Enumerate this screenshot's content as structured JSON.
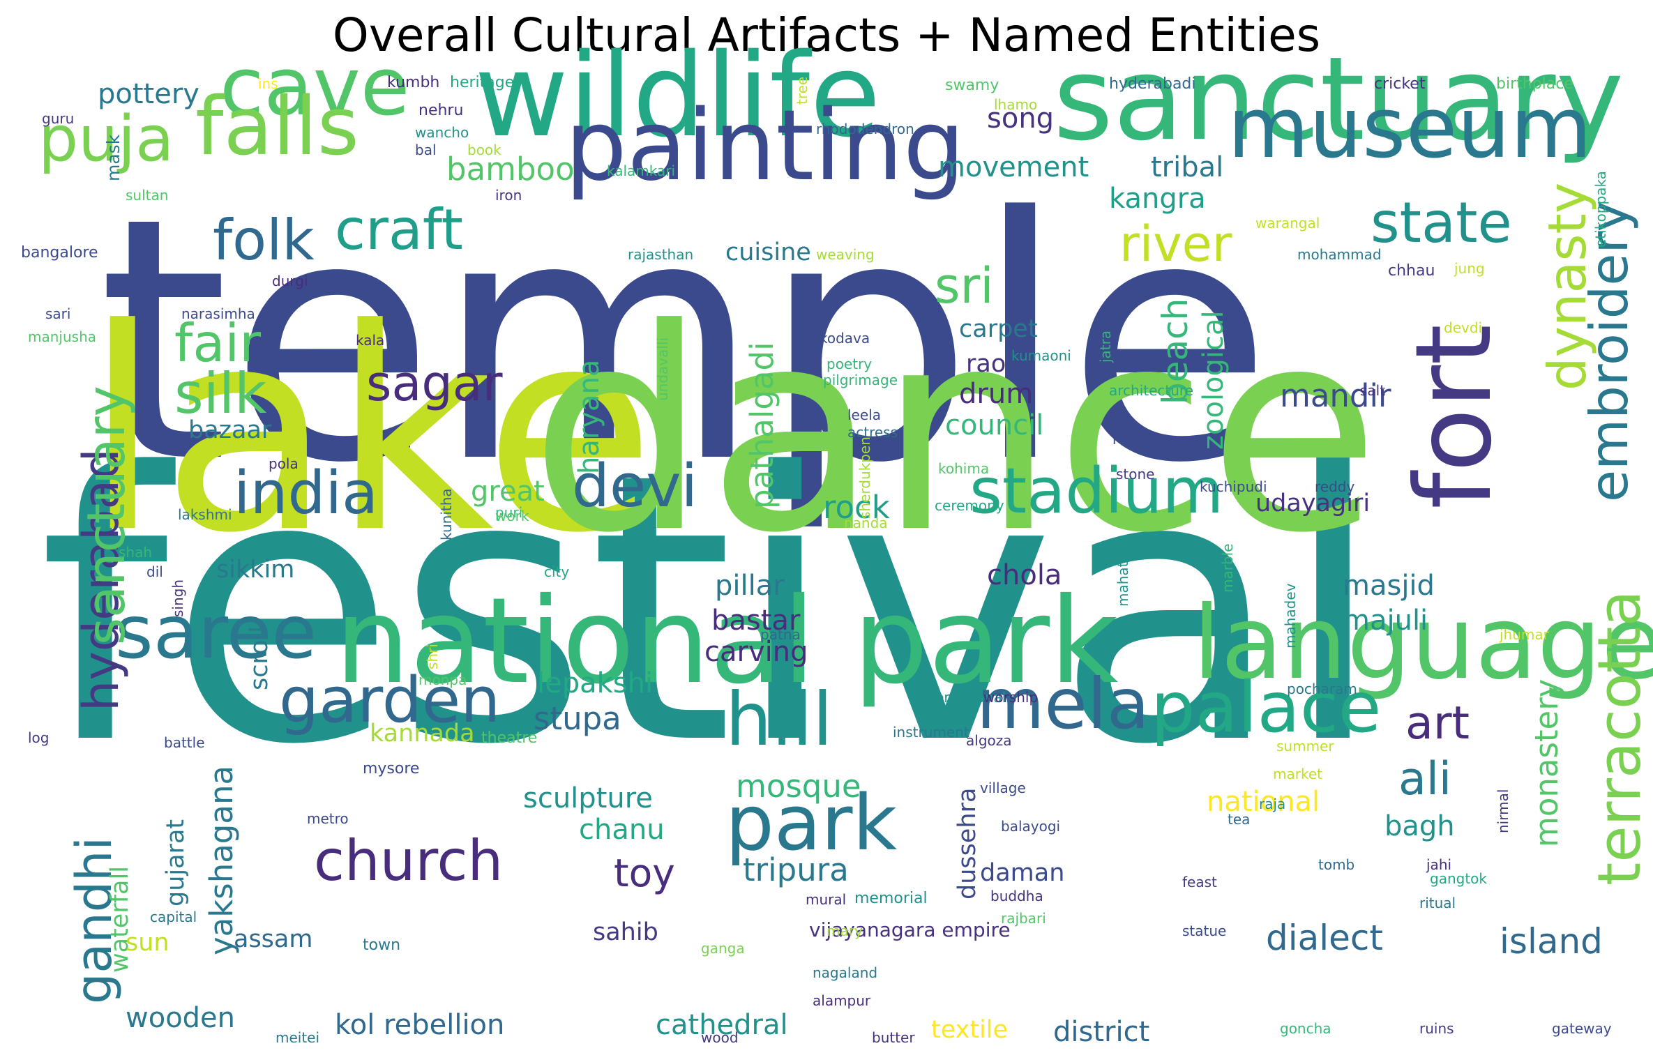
{
  "title": "Overall Cultural Artifacts + Named Entities",
  "palette": [
    "#3b4a8c",
    "#443983",
    "#472d7b",
    "#46327e",
    "#31688e",
    "#2a788e",
    "#21918c",
    "#1f9e89",
    "#22a884",
    "#35b779",
    "#52c569",
    "#7ad151",
    "#a5db36",
    "#c2df23",
    "#fde725"
  ],
  "words": [
    {
      "text": "temple",
      "color": "#3b4a8c"
    },
    {
      "text": "festival",
      "color": "#21918c"
    },
    {
      "text": "lake",
      "color": "#c2df23"
    },
    {
      "text": "dance",
      "color": "#7ad151"
    },
    {
      "text": "wildlife",
      "color": "#22a884"
    },
    {
      "text": "sanctuary",
      "color": "#35b779"
    },
    {
      "text": "painting",
      "color": "#3b4a8c"
    },
    {
      "text": "national park",
      "color": "#35b779"
    },
    {
      "text": "fort",
      "color": "#443983"
    },
    {
      "text": "museum",
      "color": "#2a788e"
    },
    {
      "text": "cave",
      "color": "#52c569"
    },
    {
      "text": "falls",
      "color": "#7ad151"
    },
    {
      "text": "language",
      "color": "#52c569"
    },
    {
      "text": "saree",
      "color": "#2a788e"
    },
    {
      "text": "mela",
      "color": "#31688e"
    },
    {
      "text": "palace",
      "color": "#22a884"
    },
    {
      "text": "park",
      "color": "#2a788e"
    },
    {
      "text": "hill",
      "color": "#21918c"
    },
    {
      "text": "garden",
      "color": "#31688e"
    },
    {
      "text": "stadium",
      "color": "#22a884"
    },
    {
      "text": "india",
      "color": "#31688e"
    },
    {
      "text": "devi",
      "color": "#31688e"
    },
    {
      "text": "church",
      "color": "#472d7b"
    },
    {
      "text": "craft",
      "color": "#1f9e89"
    },
    {
      "text": "folk",
      "color": "#31688e"
    },
    {
      "text": "state",
      "color": "#21918c"
    },
    {
      "text": "puja",
      "color": "#7ad151"
    },
    {
      "text": "embroidery",
      "color": "#2a788e"
    },
    {
      "text": "terracotta",
      "color": "#7ad151"
    },
    {
      "text": "dynasty",
      "color": "#a5db36"
    },
    {
      "text": "hyderabad",
      "color": "#443983"
    },
    {
      "text": "sanctuary",
      "color": "#52c569"
    },
    {
      "text": "gandhi",
      "color": "#2a788e"
    },
    {
      "text": "fair",
      "color": "#52c569"
    },
    {
      "text": "silk",
      "color": "#52c569"
    },
    {
      "text": "sri",
      "color": "#52c569"
    },
    {
      "text": "river",
      "color": "#c2df23"
    },
    {
      "text": "sagar",
      "color": "#472d7b"
    },
    {
      "text": "art",
      "color": "#472d7b"
    },
    {
      "text": "ali",
      "color": "#2a788e"
    },
    {
      "text": "island",
      "color": "#31688e"
    },
    {
      "text": "dialect",
      "color": "#31688e"
    },
    {
      "text": "toy",
      "color": "#472d7b"
    },
    {
      "text": "tripura",
      "color": "#2a788e"
    },
    {
      "text": "mosque",
      "color": "#35b779"
    },
    {
      "text": "stupa",
      "color": "#31688e"
    },
    {
      "text": "mandir",
      "color": "#3b4a8c"
    },
    {
      "text": "beach",
      "color": "#35b779"
    },
    {
      "text": "zoological",
      "color": "#35b779"
    },
    {
      "text": "pathalgadi",
      "color": "#52c569"
    },
    {
      "text": "haryana",
      "color": "#35b779"
    },
    {
      "text": "yakshagana",
      "color": "#2a788e"
    },
    {
      "text": "waterfall",
      "color": "#52c569"
    },
    {
      "text": "gujarat",
      "color": "#2a788e"
    },
    {
      "text": "monastery",
      "color": "#52c569"
    },
    {
      "text": "dussehra",
      "color": "#3b4a8c"
    },
    {
      "text": "scroll",
      "color": "#2a788e"
    },
    {
      "text": "pottery",
      "color": "#2a788e"
    },
    {
      "text": "bamboo",
      "color": "#52c569"
    },
    {
      "text": "cuisine",
      "color": "#2a788e"
    },
    {
      "text": "tribal",
      "color": "#2a788e"
    },
    {
      "text": "kangra",
      "color": "#1f9e89"
    },
    {
      "text": "movement",
      "color": "#21918c"
    },
    {
      "text": "song",
      "color": "#46327e"
    },
    {
      "text": "carpet",
      "color": "#2a788e"
    },
    {
      "text": "rao",
      "color": "#46327e"
    },
    {
      "text": "drum",
      "color": "#472d7b"
    },
    {
      "text": "council",
      "color": "#35b779"
    },
    {
      "text": "bazaar",
      "color": "#2a788e"
    },
    {
      "text": "great",
      "color": "#52c569"
    },
    {
      "text": "rock",
      "color": "#1f9e89"
    },
    {
      "text": "udayagiri",
      "color": "#46327e"
    },
    {
      "text": "sikkim",
      "color": "#2a788e"
    },
    {
      "text": "chola",
      "color": "#472d7b"
    },
    {
      "text": "pillar",
      "color": "#2a788e"
    },
    {
      "text": "bastar",
      "color": "#472d7b"
    },
    {
      "text": "carving",
      "color": "#472d7b"
    },
    {
      "text": "masjid",
      "color": "#2a788e"
    },
    {
      "text": "majuli",
      "color": "#21918c"
    },
    {
      "text": "lepakshi",
      "color": "#22a884"
    },
    {
      "text": "kannada",
      "color": "#a5db36"
    },
    {
      "text": "sculpture",
      "color": "#21918c"
    },
    {
      "text": "chanu",
      "color": "#22a884"
    },
    {
      "text": "national",
      "color": "#fde725"
    },
    {
      "text": "bagh",
      "color": "#21918c"
    },
    {
      "text": "daman",
      "color": "#3b4a8c"
    },
    {
      "text": "sahib",
      "color": "#443983"
    },
    {
      "text": "assam",
      "color": "#31688e"
    },
    {
      "text": "sun",
      "color": "#c2df23"
    },
    {
      "text": "wooden",
      "color": "#2a788e"
    },
    {
      "text": "kol rebellion",
      "color": "#31688e"
    },
    {
      "text": "cathedral",
      "color": "#21918c"
    },
    {
      "text": "textile",
      "color": "#fde725"
    },
    {
      "text": "district",
      "color": "#31688e"
    },
    {
      "text": "vijayanagara empire",
      "color": "#46327e"
    },
    {
      "text": "mask",
      "color": "#2a788e"
    },
    {
      "text": "ins",
      "color": "#fde725"
    },
    {
      "text": "guru",
      "color": "#443983"
    },
    {
      "text": "kumbh",
      "color": "#472d7b"
    },
    {
      "text": "heritage",
      "color": "#22a884"
    },
    {
      "text": "nehru",
      "color": "#46327e"
    },
    {
      "text": "wancho",
      "color": "#21918c"
    },
    {
      "text": "bal",
      "color": "#3b4a8c"
    },
    {
      "text": "book",
      "color": "#a5db36"
    },
    {
      "text": "sultan",
      "color": "#52c569"
    },
    {
      "text": "iron",
      "color": "#46327e"
    },
    {
      "text": "kalamkari",
      "color": "#35b779"
    },
    {
      "text": "bangalore",
      "color": "#3b4a8c"
    },
    {
      "text": "durgi",
      "color": "#472d7b"
    },
    {
      "text": "sari",
      "color": "#3b4a8c"
    },
    {
      "text": "narasimha",
      "color": "#3b4a8c"
    },
    {
      "text": "manjusha",
      "color": "#52c569"
    },
    {
      "text": "kala",
      "color": "#472d7b"
    },
    {
      "text": "pola",
      "color": "#46327e"
    },
    {
      "text": "lakshmi",
      "color": "#2a788e"
    },
    {
      "text": "puri",
      "color": "#35b779"
    },
    {
      "text": "shah",
      "color": "#35b779"
    },
    {
      "text": "dil",
      "color": "#3b4a8c"
    },
    {
      "text": "singh",
      "color": "#46327e"
    },
    {
      "text": "kunitha",
      "color": "#31688e"
    },
    {
      "text": "work",
      "color": "#52c569"
    },
    {
      "text": "city",
      "color": "#22a884"
    },
    {
      "text": "capital",
      "color": "#2a788e"
    },
    {
      "text": "town",
      "color": "#2a788e"
    },
    {
      "text": "log",
      "color": "#443983"
    },
    {
      "text": "battle",
      "color": "#3b4a8c"
    },
    {
      "text": "mysore",
      "color": "#3b4a8c"
    },
    {
      "text": "theatre",
      "color": "#52c569"
    },
    {
      "text": "monpa",
      "color": "#52c569"
    },
    {
      "text": "shri",
      "color": "#c2df23"
    },
    {
      "text": "metro",
      "color": "#3b4a8c"
    },
    {
      "text": "mural",
      "color": "#472d7b"
    },
    {
      "text": "mary",
      "color": "#a5db36"
    },
    {
      "text": "memorial",
      "color": "#21918c"
    },
    {
      "text": "ganga",
      "color": "#7ad151"
    },
    {
      "text": "nagaland",
      "color": "#2a788e"
    },
    {
      "text": "alampur",
      "color": "#472d7b"
    },
    {
      "text": "meitei",
      "color": "#2a788e"
    },
    {
      "text": "wood",
      "color": "#443983"
    },
    {
      "text": "butter",
      "color": "#46327e"
    },
    {
      "text": "swamy",
      "color": "#52c569"
    },
    {
      "text": "lhamo",
      "color": "#a5db36"
    },
    {
      "text": "tree",
      "color": "#c2df23"
    },
    {
      "text": "rhododendron",
      "color": "#31688e"
    },
    {
      "text": "hyderabadi",
      "color": "#31688e"
    },
    {
      "text": "cricket",
      "color": "#46327e"
    },
    {
      "text": "birthplace",
      "color": "#52c569"
    },
    {
      "text": "etikoppaka",
      "color": "#22a884"
    },
    {
      "text": "warangal",
      "color": "#c2df23"
    },
    {
      "text": "rajasthan",
      "color": "#21918c"
    },
    {
      "text": "weaving",
      "color": "#a5db36"
    },
    {
      "text": "mohammad",
      "color": "#2a788e"
    },
    {
      "text": "chhau",
      "color": "#443983"
    },
    {
      "text": "jung",
      "color": "#c2df23"
    },
    {
      "text": "devdi",
      "color": "#c2df23"
    },
    {
      "text": "kumaoni",
      "color": "#21918c"
    },
    {
      "text": "kodava",
      "color": "#3b4a8c"
    },
    {
      "text": "poetry",
      "color": "#35b779"
    },
    {
      "text": "pilgrimage",
      "color": "#35b779"
    },
    {
      "text": "undavalli",
      "color": "#52c569"
    },
    {
      "text": "jatra",
      "color": "#35b779"
    },
    {
      "text": "architecture",
      "color": "#22a884"
    },
    {
      "text": "salt",
      "color": "#46327e"
    },
    {
      "text": "leela",
      "color": "#3b4a8c"
    },
    {
      "text": "actress",
      "color": "#31688e"
    },
    {
      "text": "rohit",
      "color": "#3b4a8c"
    },
    {
      "text": "kohima",
      "color": "#52c569"
    },
    {
      "text": "stone",
      "color": "#443983"
    },
    {
      "text": "nanda",
      "color": "#a5db36"
    },
    {
      "text": "ceremony",
      "color": "#22a884"
    },
    {
      "text": "sherdukpen",
      "color": "#a5db36"
    },
    {
      "text": "kuchipudi",
      "color": "#3b4a8c"
    },
    {
      "text": "reddy",
      "color": "#3b4a8c"
    },
    {
      "text": "mahatma",
      "color": "#21918c"
    },
    {
      "text": "marble",
      "color": "#35b779"
    },
    {
      "text": "mahadev",
      "color": "#21918c"
    },
    {
      "text": "jhumar",
      "color": "#c2df23"
    },
    {
      "text": "patna",
      "color": "#31688e"
    },
    {
      "text": "international",
      "color": "#21918c"
    },
    {
      "text": "worship",
      "color": "#472d7b"
    },
    {
      "text": "pocharam",
      "color": "#2a788e"
    },
    {
      "text": "instrument",
      "color": "#2a788e"
    },
    {
      "text": "algoza",
      "color": "#443983"
    },
    {
      "text": "summer",
      "color": "#c2df23"
    },
    {
      "text": "market",
      "color": "#c2df23"
    },
    {
      "text": "raja",
      "color": "#21918c"
    },
    {
      "text": "village",
      "color": "#3b4a8c"
    },
    {
      "text": "balayogi",
      "color": "#3b4a8c"
    },
    {
      "text": "tea",
      "color": "#31688e"
    },
    {
      "text": "nirmal",
      "color": "#443983"
    },
    {
      "text": "jahi",
      "color": "#472d7b"
    },
    {
      "text": "tomb",
      "color": "#31688e"
    },
    {
      "text": "gangtok",
      "color": "#22a884"
    },
    {
      "text": "ritual",
      "color": "#2a788e"
    },
    {
      "text": "feast",
      "color": "#443983"
    },
    {
      "text": "buddha",
      "color": "#46327e"
    },
    {
      "text": "rajbari",
      "color": "#52c569"
    },
    {
      "text": "statue",
      "color": "#3b4a8c"
    },
    {
      "text": "goncha",
      "color": "#35b779"
    },
    {
      "text": "ruins",
      "color": "#443983"
    },
    {
      "text": "gateway",
      "color": "#3b4a8c"
    }
  ]
}
